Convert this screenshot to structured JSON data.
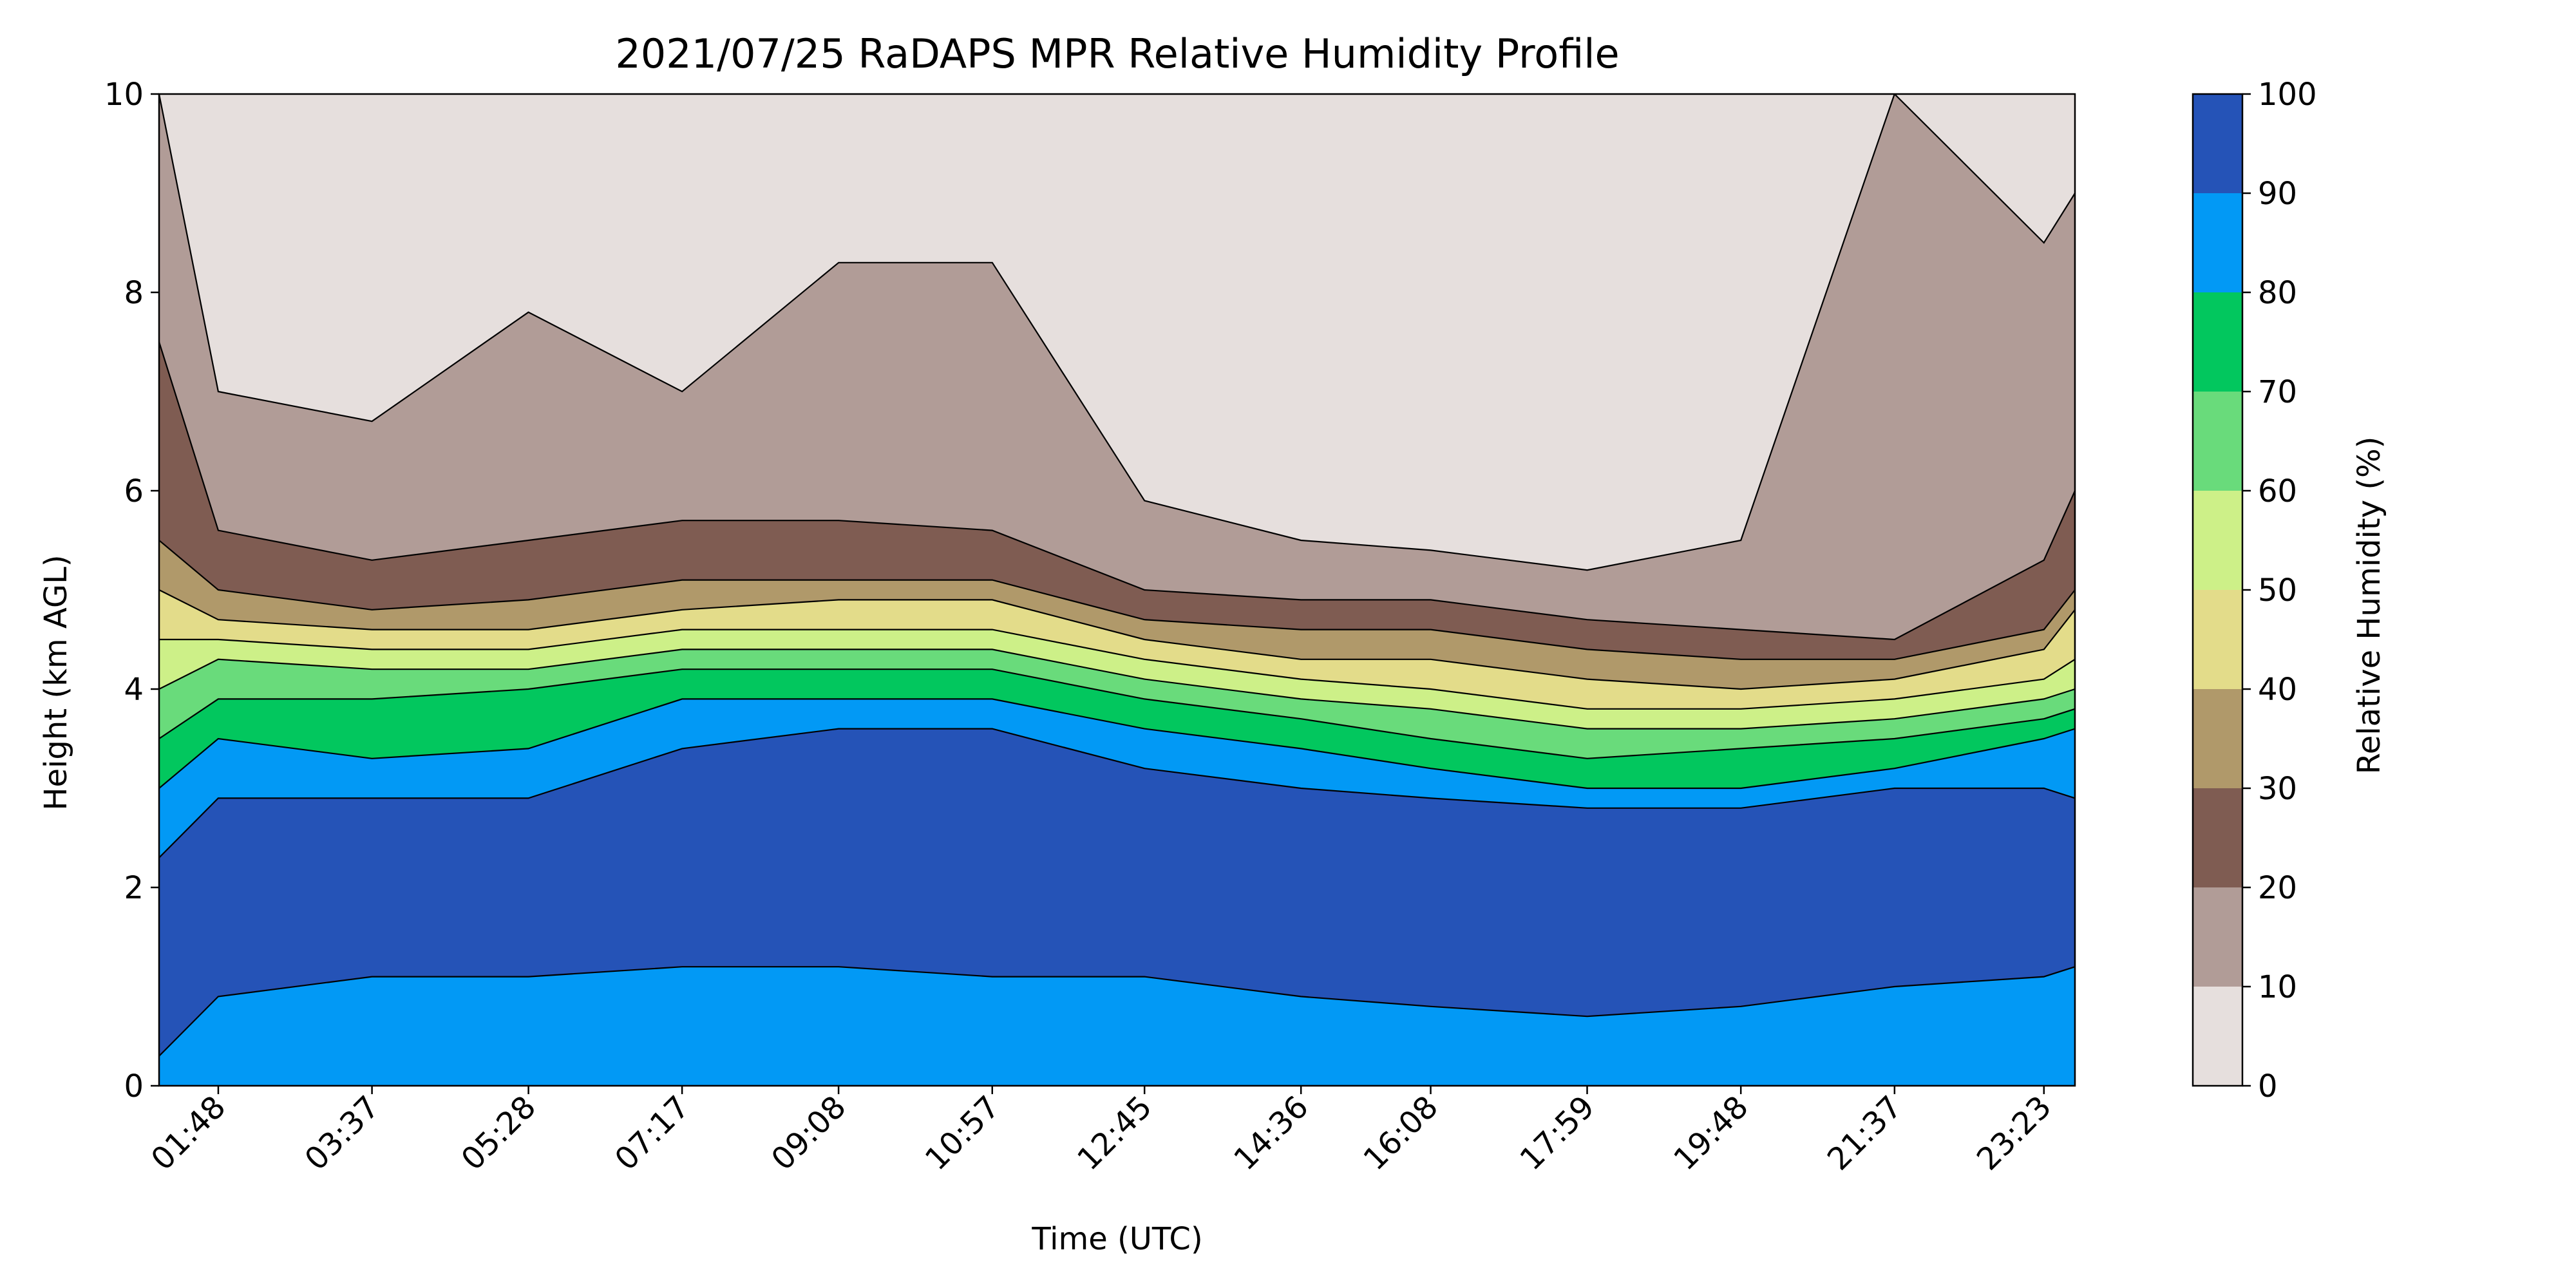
{
  "chart_data": {
    "type": "heatmap",
    "title": "2021/07/25 RaDAPS MPR Relative Humidity Profile",
    "xlabel": "Time (UTC)",
    "ylabel": "Height (km AGL)",
    "xlim": [
      "01:06",
      "23:45"
    ],
    "ylim": [
      0,
      10
    ],
    "x_ticks": [
      "01:48",
      "03:37",
      "05:28",
      "07:17",
      "09:08",
      "10:57",
      "12:45",
      "14:36",
      "16:08",
      "17:59",
      "19:48",
      "21:37",
      "23:23"
    ],
    "x_tick_hours": [
      1.8,
      3.617,
      5.467,
      7.283,
      9.133,
      10.95,
      12.75,
      14.6,
      16.133,
      17.983,
      19.8,
      21.617,
      23.383
    ],
    "y_ticks": [
      "0",
      "2",
      "4",
      "6",
      "8",
      "10"
    ],
    "colorbar": {
      "label": "Relative Humidity (%)",
      "levels": [
        0,
        10,
        20,
        30,
        40,
        50,
        60,
        70,
        80,
        90,
        100
      ],
      "tick_labels": [
        "0",
        "10",
        "20",
        "30",
        "40",
        "50",
        "60",
        "70",
        "80",
        "90",
        "100"
      ],
      "colors": [
        "#e6dfdd",
        "#b19c97",
        "#7f5c52",
        "#b0996a",
        "#e3dc8a",
        "#cdf088",
        "#69db7b",
        "#02c75e",
        "#0299f5",
        "#2553b7"
      ]
    },
    "contour_boundaries_km": {
      "columns_utc": [
        "01:06",
        "01:48",
        "03:37",
        "05:28",
        "07:17",
        "09:08",
        "10:57",
        "12:45",
        "14:36",
        "16:08",
        "17:59",
        "19:48",
        "21:37",
        "23:23",
        "23:45"
      ],
      "rh_90_lower": [
        0.3,
        0.9,
        1.1,
        1.1,
        1.2,
        1.2,
        1.1,
        1.1,
        0.9,
        0.8,
        0.7,
        0.8,
        1.0,
        1.1,
        1.2
      ],
      "rh_90_upper": [
        2.3,
        2.9,
        2.9,
        2.9,
        3.4,
        3.6,
        3.6,
        3.2,
        3.0,
        2.9,
        2.8,
        2.8,
        3.0,
        3.0,
        2.9
      ],
      "rh_80_upper": [
        3.0,
        3.5,
        3.3,
        3.4,
        3.9,
        3.9,
        3.9,
        3.6,
        3.4,
        3.2,
        3.0,
        3.0,
        3.2,
        3.5,
        3.6
      ],
      "rh_70_upper": [
        3.5,
        3.9,
        3.9,
        4.0,
        4.2,
        4.2,
        4.2,
        3.9,
        3.7,
        3.5,
        3.3,
        3.4,
        3.5,
        3.7,
        3.8
      ],
      "rh_60_upper": [
        4.0,
        4.3,
        4.2,
        4.2,
        4.4,
        4.4,
        4.4,
        4.1,
        3.9,
        3.8,
        3.6,
        3.6,
        3.7,
        3.9,
        4.0
      ],
      "rh_50_upper": [
        4.5,
        4.5,
        4.4,
        4.4,
        4.6,
        4.6,
        4.6,
        4.3,
        4.1,
        4.0,
        3.8,
        3.8,
        3.9,
        4.1,
        4.3
      ],
      "rh_40_upper": [
        5.0,
        4.7,
        4.6,
        4.6,
        4.8,
        4.9,
        4.9,
        4.5,
        4.3,
        4.3,
        4.1,
        4.0,
        4.1,
        4.4,
        4.8
      ],
      "rh_30_upper": [
        5.5,
        5.0,
        4.8,
        4.9,
        5.1,
        5.1,
        5.1,
        4.7,
        4.6,
        4.6,
        4.4,
        4.3,
        4.3,
        4.6,
        5.0
      ],
      "rh_20_upper": [
        7.5,
        5.6,
        5.3,
        5.5,
        5.7,
        5.7,
        5.6,
        5.0,
        4.9,
        4.9,
        4.7,
        4.6,
        4.5,
        5.3,
        6.0
      ],
      "rh_10_upper": [
        10.0,
        7.0,
        6.7,
        7.8,
        7.0,
        8.3,
        8.3,
        5.9,
        5.5,
        5.4,
        5.2,
        5.5,
        10.0,
        8.5,
        9.0
      ]
    }
  }
}
